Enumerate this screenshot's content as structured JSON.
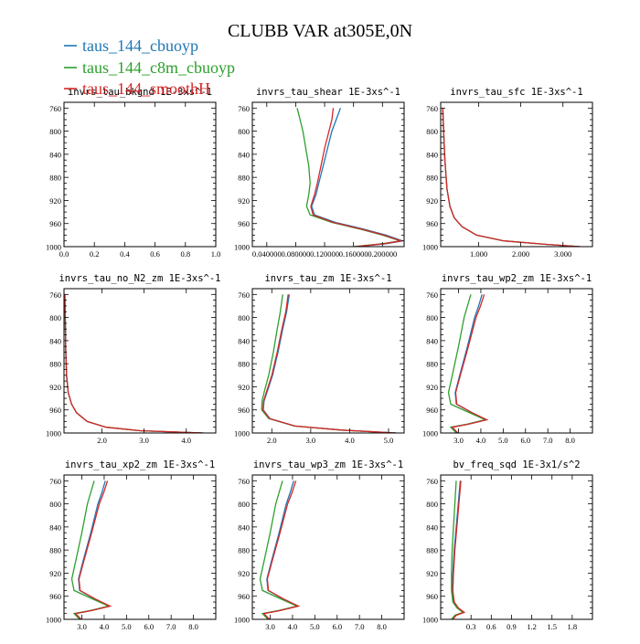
{
  "figure": {
    "title": "CLUBB VAR at305E,0N"
  },
  "legend": [
    {
      "label": "taus_144_cbuoyp",
      "color": "#1f77b4"
    },
    {
      "label": "taus_144_c8m_cbuoyp",
      "color": "#2ca02c"
    },
    {
      "label": "taus_144_smoothH",
      "color": "#d62728"
    }
  ],
  "chart_data": [
    {
      "type": "line",
      "title": "invrs_tau_bkgnd   1E-3xs^-1",
      "xlim": [
        0,
        1
      ],
      "ylim": [
        1000,
        750
      ],
      "xticks": [
        0.0,
        0.2,
        0.4,
        0.6,
        0.8,
        1.0
      ],
      "xtick_labels": [
        "0.0",
        "0.2",
        "0.4",
        "0.6",
        "0.8",
        "1.0"
      ],
      "yticks": [
        760,
        800,
        840,
        880,
        920,
        960,
        1000
      ],
      "series": []
    },
    {
      "type": "line",
      "title": "invrs_tau_shear   1E-3xs^-1",
      "xlim": [
        0.02,
        0.23
      ],
      "ylim": [
        1000,
        750
      ],
      "xticks": [
        0.04,
        0.08,
        0.12,
        0.16,
        0.2
      ],
      "xtick_labels": [
        "0.040000",
        "0.080000",
        "0.120000",
        "0.160000",
        "0.200000"
      ],
      "yticks": [
        760,
        800,
        840,
        880,
        920,
        960,
        1000
      ],
      "series": [
        {
          "name": "taus_144_cbuoyp",
          "x": [
            0.142,
            0.136,
            0.13,
            0.124,
            0.118,
            0.112,
            0.108,
            0.102,
            0.106,
            0.135,
            0.175,
            0.205,
            0.228,
            0.205,
            0.165
          ],
          "y": [
            760,
            780,
            800,
            830,
            860,
            890,
            910,
            930,
            945,
            958,
            970,
            980,
            990,
            995,
            1000
          ]
        },
        {
          "name": "taus_144_c8m_cbuoyp",
          "x": [
            0.082,
            0.086,
            0.09,
            0.094,
            0.098,
            0.1,
            0.098,
            0.095,
            0.1,
            0.13,
            0.17,
            0.2,
            0.225,
            0.2,
            0.16
          ],
          "y": [
            760,
            780,
            800,
            830,
            860,
            890,
            910,
            930,
            945,
            958,
            970,
            980,
            990,
            995,
            1000
          ]
        },
        {
          "name": "taus_144_smoothH",
          "x": [
            0.132,
            0.13,
            0.126,
            0.12,
            0.115,
            0.11,
            0.106,
            0.101,
            0.104,
            0.132,
            0.172,
            0.202,
            0.226,
            0.202,
            0.162
          ],
          "y": [
            760,
            780,
            800,
            830,
            860,
            890,
            910,
            930,
            945,
            958,
            970,
            980,
            990,
            995,
            1000
          ]
        }
      ]
    },
    {
      "type": "line",
      "title": "invrs_tau_sfc   1E-3xs^-1",
      "xlim": [
        0.1,
        3.7
      ],
      "ylim": [
        1000,
        750
      ],
      "xticks": [
        1.0,
        2.0,
        3.0
      ],
      "xtick_labels": [
        "1.000",
        "2.000",
        "3.000"
      ],
      "yticks": [
        760,
        800,
        840,
        880,
        920,
        960,
        1000
      ],
      "series": [
        {
          "name": "taus_144_cbuoyp",
          "x": [
            0.15,
            0.17,
            0.2,
            0.25,
            0.32,
            0.42,
            0.6,
            0.95,
            1.6,
            2.6,
            3.4
          ],
          "y": [
            760,
            800,
            850,
            900,
            930,
            950,
            965,
            980,
            990,
            996,
            1000
          ]
        },
        {
          "name": "taus_144_c8m_cbuoyp",
          "x": [
            0.15,
            0.17,
            0.2,
            0.25,
            0.32,
            0.42,
            0.6,
            0.95,
            1.6,
            2.6,
            3.4
          ],
          "y": [
            760,
            800,
            850,
            900,
            930,
            950,
            965,
            980,
            990,
            996,
            1000
          ]
        },
        {
          "name": "taus_144_smoothH",
          "x": [
            0.15,
            0.17,
            0.2,
            0.25,
            0.32,
            0.42,
            0.6,
            0.95,
            1.6,
            2.6,
            3.4
          ],
          "y": [
            760,
            800,
            850,
            900,
            930,
            950,
            965,
            980,
            990,
            996,
            1000
          ]
        }
      ]
    },
    {
      "type": "line",
      "title": "invrs_tau_no_N2_zm   1E-3xs^-1",
      "xlim": [
        1.1,
        4.7
      ],
      "ylim": [
        1000,
        750
      ],
      "xticks": [
        2.0,
        3.0,
        4.0
      ],
      "xtick_labels": [
        "2.0",
        "3.0",
        "4.0"
      ],
      "yticks": [
        760,
        800,
        840,
        880,
        920,
        960,
        1000
      ],
      "series": [
        {
          "name": "taus_144_cbuoyp",
          "x": [
            1.12,
            1.13,
            1.14,
            1.16,
            1.2,
            1.28,
            1.4,
            1.65,
            2.1,
            2.9,
            4.4
          ],
          "y": [
            760,
            800,
            850,
            900,
            930,
            950,
            965,
            980,
            990,
            996,
            1000
          ]
        },
        {
          "name": "taus_144_c8m_cbuoyp",
          "x": [
            1.12,
            1.13,
            1.14,
            1.16,
            1.2,
            1.28,
            1.4,
            1.65,
            2.1,
            2.9,
            4.4
          ],
          "y": [
            760,
            800,
            850,
            900,
            930,
            950,
            965,
            980,
            990,
            996,
            1000
          ]
        },
        {
          "name": "taus_144_smoothH",
          "x": [
            1.12,
            1.13,
            1.14,
            1.16,
            1.2,
            1.28,
            1.4,
            1.65,
            2.1,
            2.9,
            4.4
          ],
          "y": [
            760,
            800,
            850,
            900,
            930,
            950,
            965,
            980,
            990,
            996,
            1000
          ]
        }
      ]
    },
    {
      "type": "line",
      "title": "invrs_tau_zm   1E-3xs^-1",
      "xlim": [
        1.5,
        5.4
      ],
      "ylim": [
        1000,
        750
      ],
      "xticks": [
        2.0,
        3.0,
        4.0,
        5.0
      ],
      "xtick_labels": [
        "2.0",
        "3.0",
        "4.0",
        "5.0"
      ],
      "yticks": [
        760,
        800,
        840,
        880,
        920,
        960,
        1000
      ],
      "series": [
        {
          "name": "taus_144_cbuoyp",
          "x": [
            2.45,
            2.38,
            2.28,
            2.16,
            2.02,
            1.9,
            1.8,
            1.78,
            1.95,
            2.6,
            3.8,
            5.2
          ],
          "y": [
            760,
            790,
            820,
            860,
            900,
            925,
            945,
            960,
            975,
            988,
            995,
            1000
          ]
        },
        {
          "name": "taus_144_c8m_cbuoyp",
          "x": [
            2.28,
            2.22,
            2.14,
            2.04,
            1.92,
            1.82,
            1.75,
            1.74,
            1.92,
            2.58,
            3.78,
            5.18
          ],
          "y": [
            760,
            790,
            820,
            860,
            900,
            925,
            945,
            960,
            975,
            988,
            995,
            1000
          ]
        },
        {
          "name": "taus_144_smoothH",
          "x": [
            2.42,
            2.36,
            2.26,
            2.14,
            2.0,
            1.88,
            1.79,
            1.77,
            1.94,
            2.59,
            3.79,
            5.19
          ],
          "y": [
            760,
            790,
            820,
            860,
            900,
            925,
            945,
            960,
            975,
            988,
            995,
            1000
          ]
        }
      ]
    },
    {
      "type": "line",
      "title": "invrs_tau_wp2_zm   1E-3xs^-1",
      "xlim": [
        2.2,
        9.0
      ],
      "ylim": [
        1000,
        750
      ],
      "xticks": [
        3.0,
        4.0,
        5.0,
        6.0,
        7.0,
        8.0
      ],
      "xtick_labels": [
        "3.0",
        "4.0",
        "5.0",
        "6.0",
        "7.0",
        "8.0"
      ],
      "yticks": [
        760,
        800,
        840,
        880,
        920,
        960,
        1000
      ],
      "series": [
        {
          "name": "taus_144_cbuoyp",
          "x": [
            4.05,
            3.9,
            3.72,
            3.4,
            3.05,
            2.85,
            2.9,
            3.6,
            4.25,
            3.4,
            2.7,
            2.95
          ],
          "y": [
            760,
            780,
            800,
            850,
            900,
            930,
            950,
            965,
            977,
            985,
            990,
            1000
          ]
        },
        {
          "name": "taus_144_c8m_cbuoyp",
          "x": [
            3.55,
            3.4,
            3.25,
            3.0,
            2.72,
            2.55,
            2.65,
            3.5,
            4.2,
            3.35,
            2.65,
            2.9
          ],
          "y": [
            760,
            780,
            800,
            850,
            900,
            930,
            950,
            965,
            977,
            985,
            990,
            1000
          ]
        },
        {
          "name": "taus_144_smoothH",
          "x": [
            4.15,
            3.98,
            3.78,
            3.44,
            3.08,
            2.87,
            2.92,
            3.62,
            4.27,
            3.42,
            2.72,
            2.97
          ],
          "y": [
            760,
            780,
            800,
            850,
            900,
            930,
            950,
            965,
            977,
            985,
            990,
            1000
          ]
        }
      ]
    },
    {
      "type": "line",
      "title": "invrs_tau_xp2_zm   1E-3xs^-1",
      "xlim": [
        2.2,
        9.0
      ],
      "ylim": [
        1000,
        750
      ],
      "xticks": [
        3.0,
        4.0,
        5.0,
        6.0,
        7.0,
        8.0
      ],
      "xtick_labels": [
        "3.0",
        "4.0",
        "5.0",
        "6.0",
        "7.0",
        "8.0"
      ],
      "yticks": [
        760,
        800,
        840,
        880,
        920,
        960,
        1000
      ],
      "series": [
        {
          "name": "taus_144_cbuoyp",
          "x": [
            4.05,
            3.9,
            3.72,
            3.4,
            3.05,
            2.85,
            2.9,
            3.6,
            4.25,
            3.4,
            2.7,
            2.95
          ],
          "y": [
            760,
            780,
            800,
            850,
            900,
            930,
            950,
            965,
            977,
            985,
            990,
            1000
          ]
        },
        {
          "name": "taus_144_c8m_cbuoyp",
          "x": [
            3.55,
            3.4,
            3.25,
            3.0,
            2.72,
            2.55,
            2.65,
            3.5,
            4.2,
            3.35,
            2.65,
            2.9
          ],
          "y": [
            760,
            780,
            800,
            850,
            900,
            930,
            950,
            965,
            977,
            985,
            990,
            1000
          ]
        },
        {
          "name": "taus_144_smoothH",
          "x": [
            4.15,
            3.98,
            3.78,
            3.44,
            3.08,
            2.87,
            2.92,
            3.62,
            4.27,
            3.42,
            2.72,
            2.97
          ],
          "y": [
            760,
            780,
            800,
            850,
            900,
            930,
            950,
            965,
            977,
            985,
            990,
            1000
          ]
        }
      ]
    },
    {
      "type": "line",
      "title": "invrs_tau_wp3_zm   1E-3xs^-1",
      "xlim": [
        2.2,
        9.0
      ],
      "ylim": [
        1000,
        750
      ],
      "xticks": [
        3.0,
        4.0,
        5.0,
        6.0,
        7.0,
        8.0
      ],
      "xtick_labels": [
        "3.0",
        "4.0",
        "5.0",
        "6.0",
        "7.0",
        "8.0"
      ],
      "yticks": [
        760,
        800,
        840,
        880,
        920,
        960,
        1000
      ],
      "series": [
        {
          "name": "taus_144_cbuoyp",
          "x": [
            4.05,
            3.9,
            3.72,
            3.4,
            3.05,
            2.85,
            2.9,
            3.6,
            4.25,
            3.4,
            2.7,
            2.95
          ],
          "y": [
            760,
            780,
            800,
            850,
            900,
            930,
            950,
            965,
            977,
            985,
            990,
            1000
          ]
        },
        {
          "name": "taus_144_c8m_cbuoyp",
          "x": [
            3.55,
            3.4,
            3.25,
            3.0,
            2.72,
            2.55,
            2.65,
            3.5,
            4.2,
            3.35,
            2.65,
            2.9
          ],
          "y": [
            760,
            780,
            800,
            850,
            900,
            930,
            950,
            965,
            977,
            985,
            990,
            1000
          ]
        },
        {
          "name": "taus_144_smoothH",
          "x": [
            4.15,
            3.98,
            3.78,
            3.44,
            3.08,
            2.87,
            2.92,
            3.62,
            4.27,
            3.42,
            2.72,
            2.97
          ],
          "y": [
            760,
            780,
            800,
            850,
            900,
            930,
            950,
            965,
            977,
            985,
            990,
            1000
          ]
        }
      ]
    },
    {
      "type": "line",
      "title": "bv_freq_sqd   1E-3x1/s^2",
      "xlim": [
        -0.15,
        2.1
      ],
      "ylim": [
        1000,
        750
      ],
      "xticks": [
        0.3,
        0.6,
        0.9,
        1.2,
        1.5,
        1.8
      ],
      "xtick_labels": [
        "0.3",
        "0.6",
        "0.9",
        "1.2",
        "1.5",
        "1.8"
      ],
      "yticks": [
        760,
        800,
        840,
        880,
        920,
        960,
        1000
      ],
      "series": [
        {
          "name": "taus_144_cbuoyp",
          "x": [
            0.14,
            0.11,
            0.08,
            0.05,
            0.03,
            0.02,
            0.04,
            0.1,
            0.19,
            0.07,
            0.02
          ],
          "y": [
            760,
            800,
            840,
            880,
            920,
            950,
            970,
            980,
            988,
            993,
            1000
          ]
        },
        {
          "name": "taus_144_c8m_cbuoyp",
          "x": [
            0.08,
            0.06,
            0.04,
            0.02,
            0.01,
            0.01,
            0.03,
            0.09,
            0.18,
            0.06,
            0.01
          ],
          "y": [
            760,
            800,
            840,
            880,
            920,
            950,
            970,
            980,
            988,
            993,
            1000
          ]
        },
        {
          "name": "taus_144_smoothH",
          "x": [
            0.15,
            0.12,
            0.09,
            0.06,
            0.04,
            0.03,
            0.05,
            0.11,
            0.2,
            0.08,
            0.03
          ],
          "y": [
            760,
            800,
            840,
            880,
            920,
            950,
            970,
            980,
            988,
            993,
            1000
          ]
        }
      ]
    }
  ]
}
